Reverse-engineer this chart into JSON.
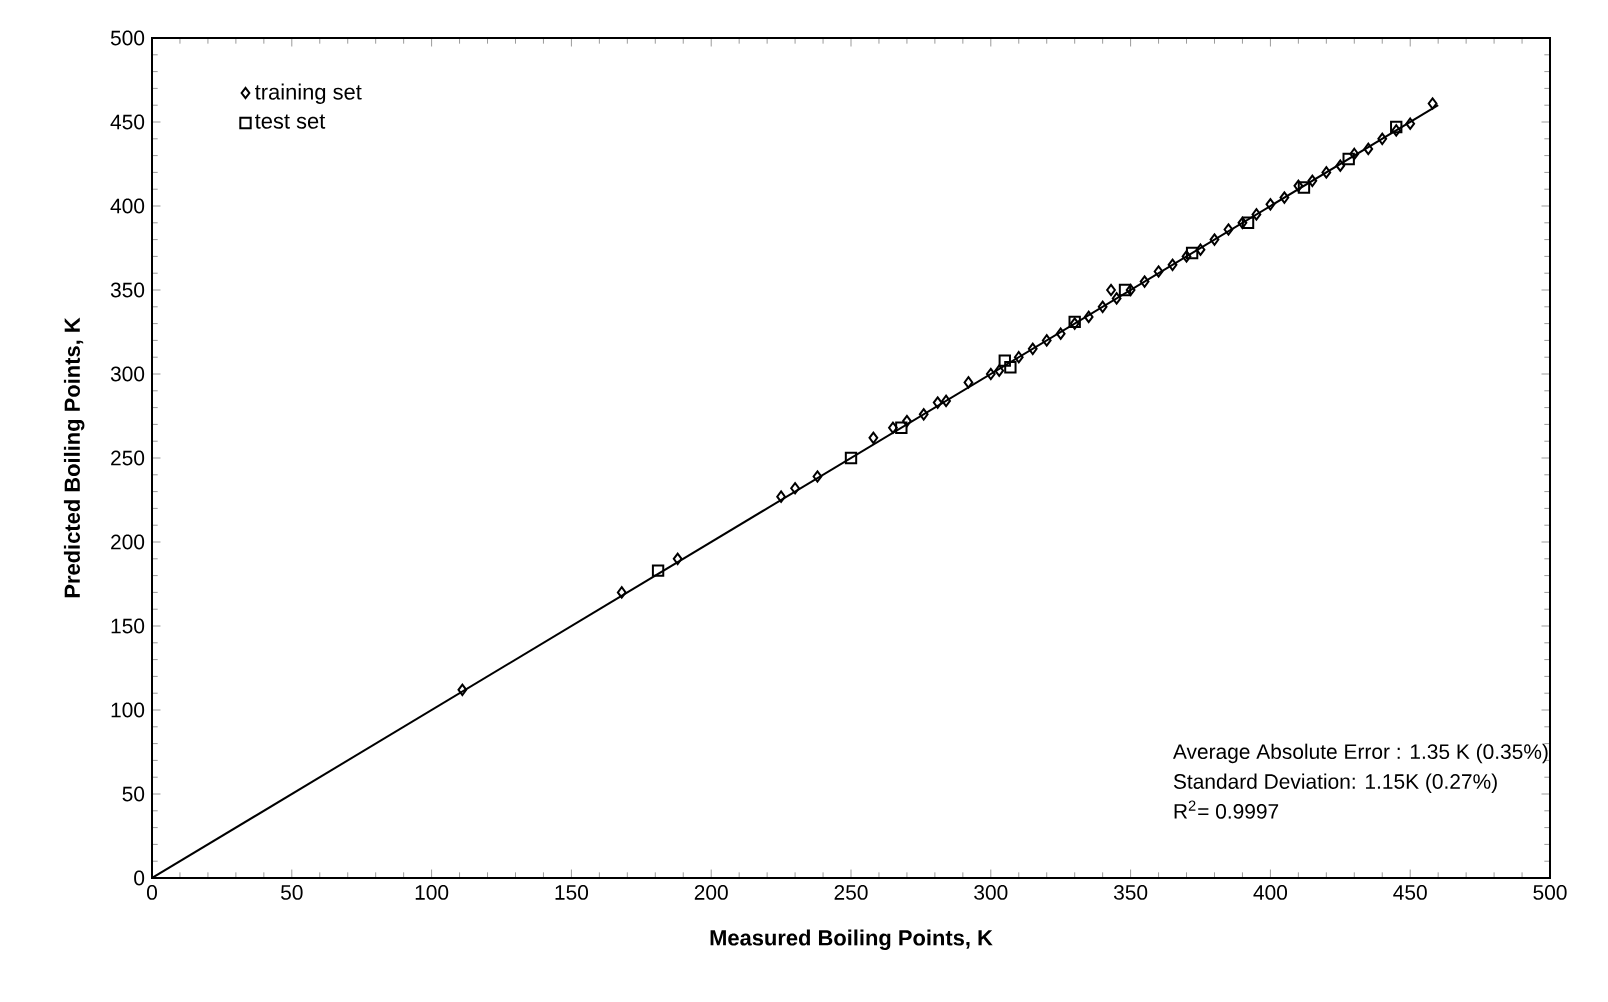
{
  "chart_data": {
    "type": "scatter",
    "xlabel": "Measured Boiling Points, K",
    "ylabel": "Predicted Boiling Points, K",
    "xlim": [
      0,
      500
    ],
    "ylim": [
      0,
      500
    ],
    "xticks": [
      0,
      50,
      100,
      150,
      200,
      250,
      300,
      350,
      400,
      450,
      500
    ],
    "yticks": [
      0,
      50,
      100,
      150,
      200,
      250,
      300,
      350,
      400,
      450,
      500
    ],
    "legend": "top left",
    "grid": false,
    "series": [
      {
        "name": "training set",
        "color": "#000000",
        "marker": "diamond",
        "x": [
          111,
          168,
          188,
          225,
          230,
          238,
          258,
          265,
          270,
          276,
          281,
          284,
          292,
          300,
          303,
          310,
          315,
          320,
          325,
          330,
          335,
          340,
          343,
          345,
          350,
          355,
          360,
          365,
          370,
          375,
          380,
          385,
          390,
          395,
          400,
          405,
          410,
          415,
          420,
          425,
          430,
          435,
          440,
          445,
          450,
          458
        ],
        "values": [
          112,
          170,
          190,
          227,
          232,
          239,
          262,
          268,
          272,
          276,
          283,
          284,
          295,
          300,
          302,
          310,
          315,
          320,
          324,
          330,
          334,
          340,
          350,
          345,
          350,
          355,
          361,
          365,
          370,
          374,
          380,
          386,
          390,
          395,
          401,
          405,
          412,
          415,
          420,
          424,
          431,
          434,
          440,
          445,
          449,
          461
        ]
      },
      {
        "name": "test set",
        "color": "#000000",
        "marker": "square",
        "x": [
          181,
          250,
          268,
          305,
          307,
          330,
          348,
          372,
          392,
          412,
          428,
          445
        ],
        "values": [
          183,
          250,
          268,
          308,
          304,
          331,
          350,
          372,
          390,
          411,
          428,
          447
        ]
      },
      {
        "type": "line",
        "color": "#000000",
        "marker": "none",
        "line_style": "solid",
        "x": [
          0,
          460
        ],
        "values": [
          0,
          460
        ]
      }
    ],
    "annotations": [
      "Average Absolute Error :  1.35 K (0.35%)",
      "Standard Deviation: 1.15K (0.27%)",
      "R$^{2}$= 0.9997"
    ]
  }
}
